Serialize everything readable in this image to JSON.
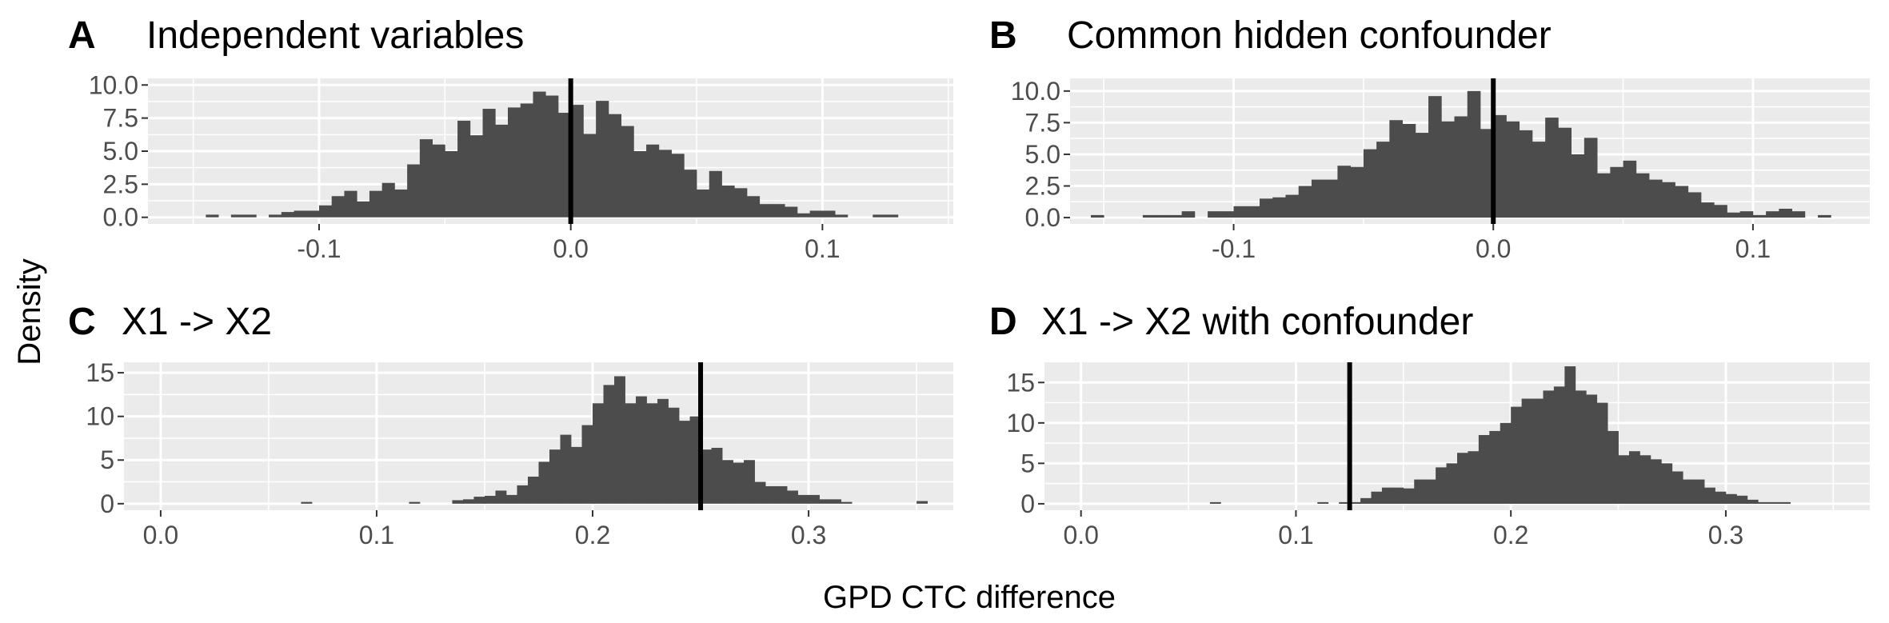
{
  "figure": {
    "ylabel": "Density",
    "xlabel": "GPD CTC difference"
  },
  "chart_data": [
    {
      "type": "bar",
      "panel": "A",
      "title": "Independent variables",
      "xlim": [
        -0.168,
        0.152
      ],
      "ylim": [
        -0.5,
        10.5
      ],
      "xticks": [
        -0.1,
        0.0,
        0.1
      ],
      "xtick_labels": [
        "-0.1",
        "0.0",
        "0.1"
      ],
      "yticks": [
        0,
        2.5,
        5,
        7.5,
        10
      ],
      "ytick_labels": [
        "0.0",
        "2.5",
        "5.0",
        "7.5",
        "10.0"
      ],
      "bin_width": 0.005,
      "bin_start": -0.145,
      "values": [
        0.2,
        0,
        0.2,
        0.2,
        0,
        0.2,
        0.4,
        0.5,
        0.5,
        0.9,
        1.6,
        2.0,
        1.2,
        2.0,
        2.6,
        2.1,
        4.0,
        5.9,
        5.5,
        5.0,
        7.3,
        6.2,
        8.2,
        7.0,
        8.3,
        8.6,
        9.5,
        9.2,
        7.9,
        8.5,
        6.3,
        8.8,
        7.8,
        6.9,
        5.0,
        5.5,
        5.1,
        4.8,
        3.6,
        2.1,
        3.5,
        2.4,
        2.2,
        1.6,
        1.0,
        1.0,
        0.8,
        0.3,
        0.5,
        0.5,
        0.2,
        0,
        0,
        0.2,
        0.2
      ],
      "vline": 0.0
    },
    {
      "type": "bar",
      "panel": "B",
      "title": "Common hidden confounder",
      "xlim": [
        -0.163,
        0.145
      ],
      "ylim": [
        -0.5,
        11.0
      ],
      "xticks": [
        -0.1,
        0.0,
        0.1
      ],
      "xtick_labels": [
        "-0.1",
        "0.0",
        "0.1"
      ],
      "yticks": [
        0,
        2.5,
        5,
        7.5,
        10
      ],
      "ytick_labels": [
        "0.0",
        "2.5",
        "5.0",
        "7.5",
        "10.0"
      ],
      "bin_width": 0.005,
      "bin_start": -0.155,
      "values": [
        0.2,
        0,
        0,
        0,
        0.2,
        0.2,
        0.2,
        0.5,
        0,
        0.5,
        0.5,
        0.9,
        0.9,
        1.5,
        1.6,
        1.8,
        2.5,
        3.0,
        3.0,
        4.1,
        4.0,
        5.4,
        6.0,
        7.7,
        7.4,
        6.7,
        9.6,
        7.6,
        8.0,
        10.0,
        7.0,
        8.1,
        7.6,
        6.9,
        6.0,
        7.9,
        7.1,
        5.0,
        6.3,
        3.5,
        4.0,
        4.5,
        3.5,
        3.0,
        2.8,
        2.5,
        2.0,
        1.2,
        1.0,
        0.4,
        0.5,
        0.2,
        0.5,
        0.7,
        0.5,
        0,
        0.2
      ],
      "vline": 0.0
    },
    {
      "type": "bar",
      "panel": "C",
      "title": "X1 -> X2",
      "xlim": [
        -0.017,
        0.367
      ],
      "ylim": [
        -0.75,
        16.2
      ],
      "xticks": [
        0.0,
        0.1,
        0.2,
        0.3
      ],
      "xtick_labels": [
        "0.0",
        "0.1",
        "0.2",
        "0.3"
      ],
      "yticks": [
        0,
        5,
        10,
        15
      ],
      "ytick_labels": [
        "0",
        "5",
        "10",
        "15"
      ],
      "bin_width": 0.005,
      "bin_start": 0.065,
      "values": [
        0.2,
        0,
        0,
        0,
        0,
        0,
        0,
        0,
        0,
        0,
        0.2,
        0,
        0,
        0,
        0.4,
        0.5,
        0.8,
        0.9,
        1.5,
        1.0,
        2.1,
        3.1,
        4.8,
        6.2,
        7.9,
        6.5,
        9.0,
        11.5,
        13.6,
        14.6,
        11.5,
        12.3,
        11.5,
        12.0,
        11.0,
        9.5,
        10.0,
        6.2,
        6.4,
        5.0,
        4.7,
        5.0,
        2.5,
        2.0,
        2.0,
        1.5,
        1.0,
        1.0,
        0.5,
        0.5,
        0.2,
        0,
        0,
        0,
        0,
        0,
        0,
        0.3
      ],
      "vline": 0.25
    },
    {
      "type": "bar",
      "panel": "D",
      "title": "X1 -> X2 with confounder",
      "xlim": [
        -0.017,
        0.367
      ],
      "ylim": [
        -0.8,
        17.5
      ],
      "xticks": [
        0.0,
        0.1,
        0.2,
        0.3
      ],
      "xtick_labels": [
        "0.0",
        "0.1",
        "0.2",
        "0.3"
      ],
      "yticks": [
        0,
        5,
        10,
        15
      ],
      "ytick_labels": [
        "0",
        "5",
        "10",
        "15"
      ],
      "bin_width": 0.005,
      "bin_start": 0.06,
      "values": [
        0.2,
        0,
        0,
        0,
        0,
        0,
        0,
        0,
        0,
        0,
        0.2,
        0,
        0.2,
        0.2,
        0.7,
        1.5,
        2.0,
        2.0,
        1.9,
        3.0,
        3.0,
        4.5,
        5.0,
        6.3,
        6.5,
        8.5,
        9.0,
        10.0,
        12.0,
        13.0,
        13.0,
        14.0,
        14.5,
        17.0,
        14.0,
        13.5,
        12.5,
        9.0,
        6.0,
        6.5,
        6.0,
        5.5,
        5.0,
        4.0,
        3.0,
        3.0,
        2.0,
        1.5,
        1.2,
        1.0,
        0.5,
        0.2,
        0.2,
        0.2
      ],
      "vline": 0.125
    }
  ]
}
